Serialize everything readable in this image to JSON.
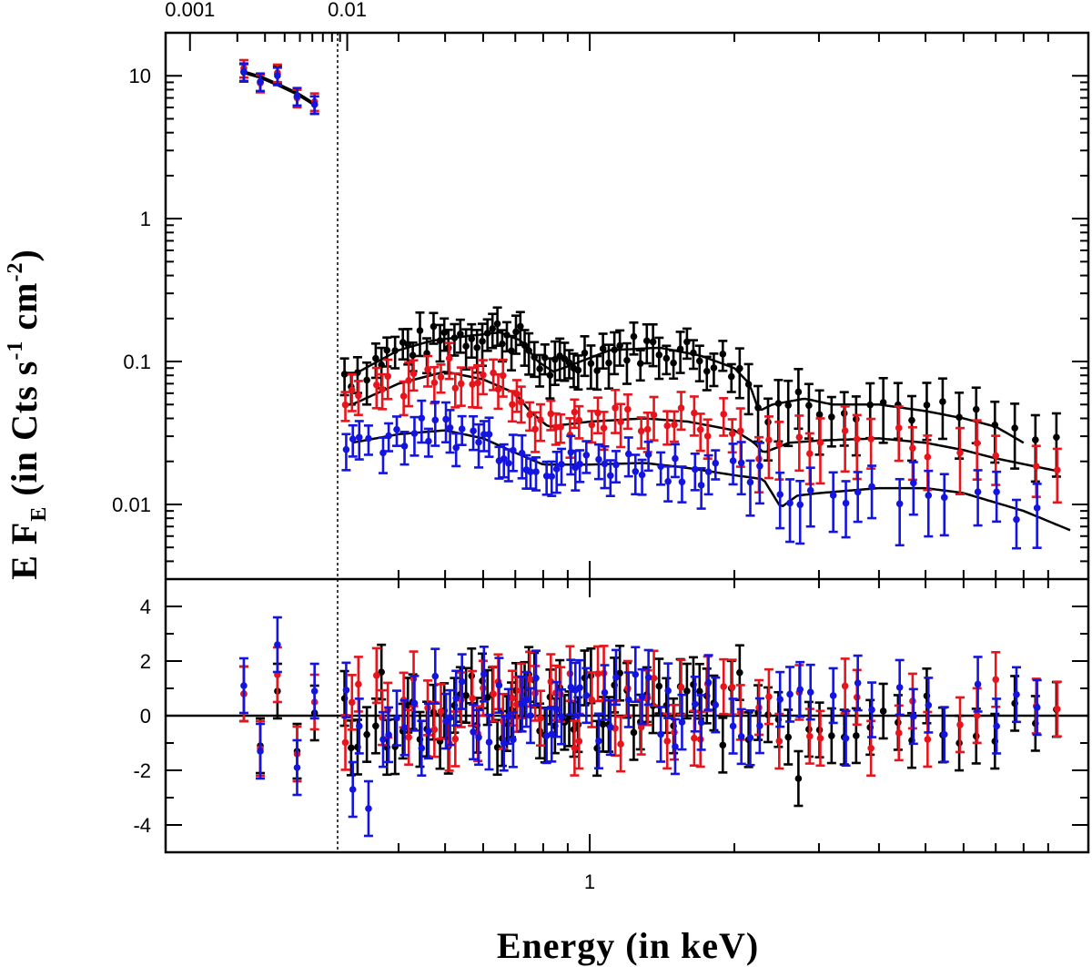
{
  "chart_data": {
    "type": "scatter",
    "ylabel": "E F_E (in Cts s^-1 cm^-2)",
    "ylabel_parts": {
      "main": "E F",
      "sub": "E",
      "mid": " (in Cts s",
      "sup1": "-1",
      "mid2": " cm",
      "sup2": "-2",
      "end": ")"
    },
    "xlabel": "Energy (in keV)",
    "top_axis_ticks": [
      "0.001",
      "0.01"
    ],
    "bottom_axis_ticks": [
      "1"
    ],
    "upper_y_ticks": [
      "10",
      "1",
      "0.1",
      "0.01"
    ],
    "lower_y_ticks": [
      "4",
      "2",
      "0",
      "-2",
      "-4"
    ],
    "upper_ylim": [
      0.003,
      20
    ],
    "lower_ylim": [
      -5,
      5
    ],
    "upper_xlim": [
      0.3,
      10
    ],
    "optical_xlim": [
      0.0007,
      0.015
    ],
    "series_colors": {
      "black": "#000000",
      "red": "#e8141c",
      "blue": "#1414e0"
    },
    "optical": {
      "x": [
        0.0022,
        0.0028,
        0.0036,
        0.0048,
        0.0062
      ],
      "model": [
        10.6,
        9.8,
        8.7,
        7.5,
        6.3
      ],
      "black": [
        10.6,
        9.0,
        10.3,
        7.1,
        6.3
      ],
      "red": [
        11.3,
        8.9,
        10.5,
        7.0,
        6.6
      ],
      "blue": [
        10.7,
        9.1,
        10.0,
        7.2,
        6.3
      ]
    },
    "optical_residuals": {
      "black": [
        0.8,
        -1.1,
        0.9,
        -1.3,
        0.1
      ],
      "red": [
        0.8,
        -1.2,
        1.5,
        -1.4,
        0.5
      ],
      "blue": [
        1.1,
        -1.3,
        2.6,
        -1.9,
        0.9
      ]
    },
    "xray_model_nodes": {
      "black": [
        [
          0.32,
          0.08
        ],
        [
          0.4,
          0.12
        ],
        [
          0.47,
          0.14
        ],
        [
          0.55,
          0.15
        ],
        [
          0.65,
          0.16
        ],
        [
          0.72,
          0.14
        ],
        [
          0.78,
          0.1
        ],
        [
          0.84,
          0.085
        ],
        [
          0.92,
          0.095
        ],
        [
          1.1,
          0.12
        ],
        [
          1.4,
          0.125
        ],
        [
          1.7,
          0.11
        ],
        [
          2.0,
          0.09
        ],
        [
          2.15,
          0.07
        ],
        [
          2.25,
          0.045
        ],
        [
          2.4,
          0.05
        ],
        [
          2.8,
          0.055
        ],
        [
          3.2,
          0.05
        ],
        [
          4.0,
          0.05
        ],
        [
          5.0,
          0.045
        ],
        [
          6.0,
          0.04
        ],
        [
          7.0,
          0.035
        ],
        [
          8.0,
          0.027
        ]
      ],
      "red": [
        [
          0.32,
          0.05
        ],
        [
          0.4,
          0.07
        ],
        [
          0.5,
          0.085
        ],
        [
          0.6,
          0.075
        ],
        [
          0.7,
          0.06
        ],
        [
          0.75,
          0.045
        ],
        [
          0.82,
          0.035
        ],
        [
          1.0,
          0.038
        ],
        [
          1.3,
          0.04
        ],
        [
          1.6,
          0.038
        ],
        [
          2.0,
          0.033
        ],
        [
          2.2,
          0.027
        ],
        [
          2.3,
          0.023
        ],
        [
          2.6,
          0.027
        ],
        [
          3.0,
          0.028
        ],
        [
          4.0,
          0.029
        ],
        [
          5.0,
          0.027
        ],
        [
          6.0,
          0.024
        ],
        [
          7.0,
          0.021
        ],
        [
          9.5,
          0.017
        ]
      ],
      "blue": [
        [
          0.32,
          0.027
        ],
        [
          0.4,
          0.031
        ],
        [
          0.5,
          0.033
        ],
        [
          0.6,
          0.029
        ],
        [
          0.7,
          0.023
        ],
        [
          0.8,
          0.019
        ],
        [
          1.0,
          0.019
        ],
        [
          1.3,
          0.0195
        ],
        [
          1.6,
          0.018
        ],
        [
          2.0,
          0.016
        ],
        [
          2.3,
          0.015
        ],
        [
          2.5,
          0.0095
        ],
        [
          2.7,
          0.0115
        ],
        [
          3.0,
          0.012
        ],
        [
          4.0,
          0.013
        ],
        [
          5.0,
          0.013
        ],
        [
          6.0,
          0.012
        ],
        [
          8.0,
          0.009
        ],
        [
          10.0,
          0.0066
        ]
      ]
    },
    "xray_energies": [
      0.31,
      0.32,
      0.33,
      0.345,
      0.36,
      0.37,
      0.38,
      0.395,
      0.41,
      0.42,
      0.43,
      0.445,
      0.46,
      0.475,
      0.49,
      0.5,
      0.51,
      0.525,
      0.54,
      0.555,
      0.57,
      0.585,
      0.6,
      0.615,
      0.63,
      0.645,
      0.66,
      0.675,
      0.69,
      0.705,
      0.72,
      0.735,
      0.75,
      0.77,
      0.79,
      0.81,
      0.83,
      0.85,
      0.87,
      0.89,
      0.91,
      0.93,
      0.95,
      0.98,
      1.01,
      1.04,
      1.07,
      1.1,
      1.13,
      1.16,
      1.2,
      1.24,
      1.28,
      1.32,
      1.36,
      1.4,
      1.45,
      1.5,
      1.55,
      1.6,
      1.65,
      1.7,
      1.76,
      1.82,
      1.9,
      1.98,
      2.06,
      2.15,
      2.25,
      2.36,
      2.48,
      2.6,
      2.73,
      2.87,
      3.02,
      3.2,
      3.4,
      3.6,
      3.85,
      4.1,
      4.4,
      4.7,
      5.05,
      5.45,
      5.9,
      6.4,
      7.0,
      7.7,
      8.5,
      9.4
    ]
  }
}
